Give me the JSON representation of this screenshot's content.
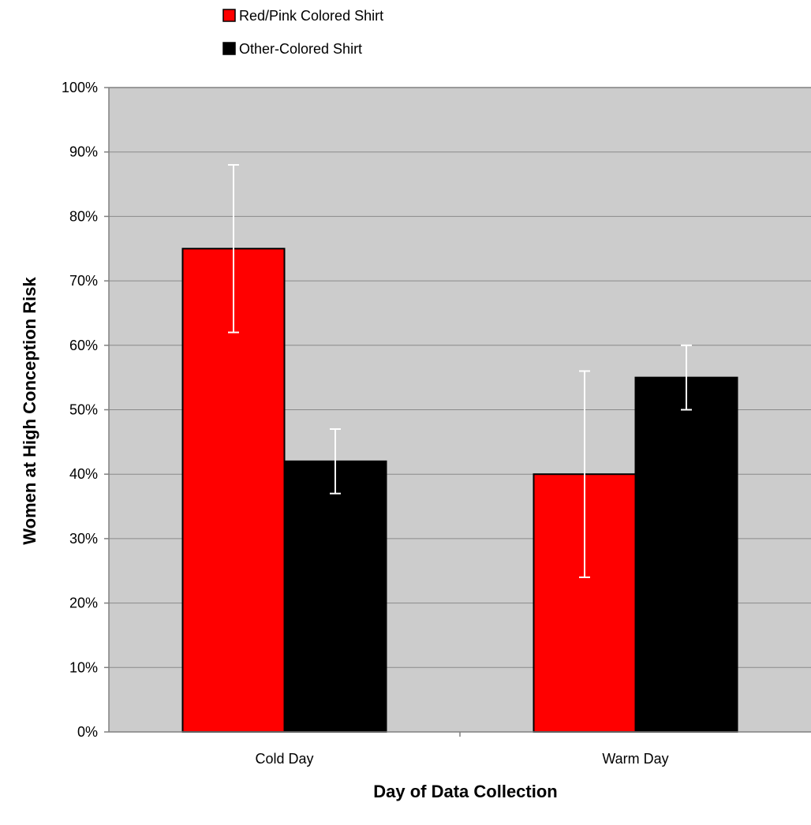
{
  "chart_data": {
    "type": "bar",
    "categories": [
      "Cold Day",
      "Warm Day"
    ],
    "series": [
      {
        "name": "Red/Pink Colored Shirt",
        "color": "#ff0000",
        "values": [
          75,
          40
        ],
        "error_bars": [
          [
            62,
            88
          ],
          [
            24,
            56
          ]
        ]
      },
      {
        "name": "Other-Colored Shirt",
        "color": "#000000",
        "values": [
          42,
          55
        ],
        "error_bars": [
          [
            37,
            47
          ],
          [
            50,
            60
          ]
        ]
      }
    ],
    "xlabel": "Day of Data Collection",
    "ylabel": "Women at High Conception Risk",
    "ylim": [
      0,
      100
    ],
    "y_ticks": [
      0,
      10,
      20,
      30,
      40,
      50,
      60,
      70,
      80,
      90,
      100
    ],
    "y_tick_format": "percent",
    "grid": true,
    "legend_position": "top-left",
    "plot_background": "#cccccc",
    "error_bar_color": "#ffffff"
  }
}
